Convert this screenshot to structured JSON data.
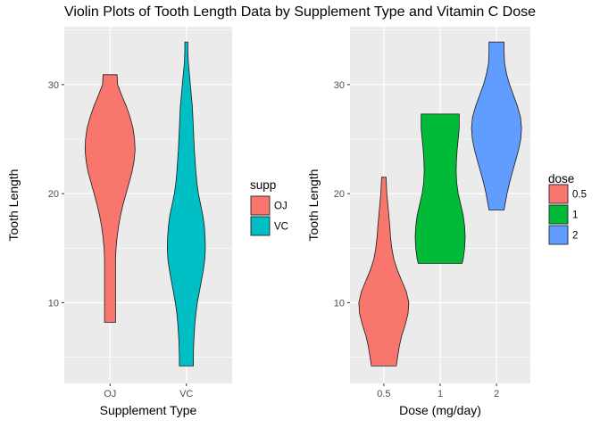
{
  "page_title": "Violin Plots of Tooth Length Data by Supplement Type and Vitamin C Dose",
  "chart_data": [
    {
      "type": "violin",
      "xlabel": "Supplement Type",
      "ylabel": "Tooth Length",
      "categories": [
        "OJ",
        "VC"
      ],
      "yticks": [
        10,
        20,
        30
      ],
      "ylim": [
        2.6,
        35.3
      ],
      "grid": true,
      "legend": {
        "title": "supp",
        "placement": "right",
        "items": [
          {
            "label": "OJ",
            "color": "#F8766D"
          },
          {
            "label": "VC",
            "color": "#00BFC4"
          }
        ]
      },
      "series": [
        {
          "category": "OJ",
          "color": "#F8766D",
          "min": 8.2,
          "max": 30.9,
          "profile": [
            [
              8.2,
              0.22
            ],
            [
              9,
              0.22
            ],
            [
              10,
              0.22
            ],
            [
              11,
              0.22
            ],
            [
              12,
              0.22
            ],
            [
              13,
              0.22
            ],
            [
              14,
              0.22
            ],
            [
              15,
              0.24
            ],
            [
              16,
              0.28
            ],
            [
              17,
              0.34
            ],
            [
              18,
              0.42
            ],
            [
              19,
              0.52
            ],
            [
              20,
              0.64
            ],
            [
              21,
              0.76
            ],
            [
              22,
              0.88
            ],
            [
              23,
              0.96
            ],
            [
              24,
              1.0
            ],
            [
              25,
              0.98
            ],
            [
              26,
              0.92
            ],
            [
              27,
              0.8
            ],
            [
              28,
              0.65
            ],
            [
              29,
              0.47
            ],
            [
              30,
              0.3
            ],
            [
              30.9,
              0.28
            ]
          ]
        },
        {
          "category": "VC",
          "color": "#00BFC4",
          "min": 4.2,
          "max": 33.9,
          "profile": [
            [
              4.2,
              0.28
            ],
            [
              5,
              0.28
            ],
            [
              6,
              0.29
            ],
            [
              7,
              0.31
            ],
            [
              8,
              0.34
            ],
            [
              9,
              0.38
            ],
            [
              10,
              0.44
            ],
            [
              11,
              0.52
            ],
            [
              12,
              0.6
            ],
            [
              13,
              0.68
            ],
            [
              14,
              0.74
            ],
            [
              15,
              0.76
            ],
            [
              16,
              0.75
            ],
            [
              17,
              0.72
            ],
            [
              18,
              0.66
            ],
            [
              19,
              0.57
            ],
            [
              20,
              0.48
            ],
            [
              21,
              0.42
            ],
            [
              22,
              0.38
            ],
            [
              23,
              0.35
            ],
            [
              24,
              0.32
            ],
            [
              25,
              0.3
            ],
            [
              26,
              0.28
            ],
            [
              27,
              0.26
            ],
            [
              28,
              0.24
            ],
            [
              29,
              0.2
            ],
            [
              30,
              0.16
            ],
            [
              31,
              0.12
            ],
            [
              32,
              0.08
            ],
            [
              33,
              0.06
            ],
            [
              33.9,
              0.06
            ]
          ]
        }
      ]
    },
    {
      "type": "violin",
      "xlabel": "Dose (mg/day)",
      "ylabel": "Tooth Length",
      "categories": [
        "0.5",
        "1",
        "2"
      ],
      "yticks": [
        10,
        20,
        30
      ],
      "ylim": [
        2.6,
        35.3
      ],
      "grid": true,
      "legend": {
        "title": "dose",
        "placement": "right",
        "items": [
          {
            "label": "0.5",
            "color": "#F8766D"
          },
          {
            "label": "1",
            "color": "#00BA38"
          },
          {
            "label": "2",
            "color": "#619CFF"
          }
        ]
      },
      "series": [
        {
          "category": "0.5",
          "color": "#F8766D",
          "min": 4.2,
          "max": 21.5,
          "profile": [
            [
              4.2,
              0.5
            ],
            [
              5,
              0.55
            ],
            [
              6,
              0.62
            ],
            [
              7,
              0.72
            ],
            [
              8,
              0.86
            ],
            [
              9,
              0.97
            ],
            [
              10,
              1.0
            ],
            [
              11,
              0.9
            ],
            [
              12,
              0.72
            ],
            [
              13,
              0.54
            ],
            [
              14,
              0.4
            ],
            [
              15,
              0.32
            ],
            [
              16,
              0.27
            ],
            [
              17,
              0.24
            ],
            [
              18,
              0.2
            ],
            [
              19,
              0.16
            ],
            [
              20,
              0.12
            ],
            [
              21,
              0.1
            ],
            [
              21.5,
              0.09
            ]
          ]
        },
        {
          "category": "1",
          "color": "#00BA38",
          "min": 13.6,
          "max": 27.3,
          "profile": [
            [
              13.6,
              0.88
            ],
            [
              14,
              0.92
            ],
            [
              15,
              0.98
            ],
            [
              16,
              1.0
            ],
            [
              17,
              0.98
            ],
            [
              18,
              0.92
            ],
            [
              19,
              0.82
            ],
            [
              20,
              0.72
            ],
            [
              21,
              0.66
            ],
            [
              22,
              0.64
            ],
            [
              23,
              0.65
            ],
            [
              24,
              0.68
            ],
            [
              25,
              0.72
            ],
            [
              26,
              0.76
            ],
            [
              27,
              0.76
            ],
            [
              27.3,
              0.76
            ]
          ]
        },
        {
          "category": "2",
          "color": "#619CFF",
          "min": 18.5,
          "max": 33.9,
          "profile": [
            [
              18.5,
              0.3
            ],
            [
              19,
              0.34
            ],
            [
              20,
              0.42
            ],
            [
              21,
              0.52
            ],
            [
              22,
              0.64
            ],
            [
              23,
              0.76
            ],
            [
              24,
              0.88
            ],
            [
              25,
              0.97
            ],
            [
              26,
              1.0
            ],
            [
              27,
              0.96
            ],
            [
              28,
              0.84
            ],
            [
              29,
              0.68
            ],
            [
              30,
              0.52
            ],
            [
              31,
              0.4
            ],
            [
              32,
              0.32
            ],
            [
              33,
              0.3
            ],
            [
              33.9,
              0.3
            ]
          ]
        }
      ]
    }
  ]
}
